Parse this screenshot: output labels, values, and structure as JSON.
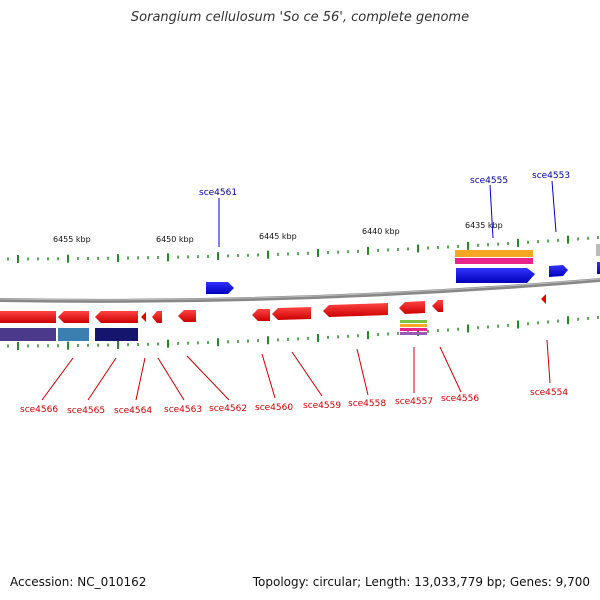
{
  "title": "Sorangium cellulosum 'So ce 56', complete genome",
  "footer": {
    "accession": "Accession: NC_010162",
    "summary": "Topology: circular; Length: 13,033,779 bp; Genes: 9,700"
  },
  "scale_labels": [
    "6455 kbp",
    "6450 kbp",
    "6445 kbp",
    "6440 kbp",
    "6435 kbp"
  ],
  "gene_labels_top": [
    "sce4561",
    "sce4555",
    "sce4553"
  ],
  "gene_labels_bottom": [
    "sce4566",
    "sce4565",
    "sce4564",
    "sce4563",
    "sce4562",
    "sce4560",
    "sce4559",
    "sce4558",
    "sce4557",
    "sce4556",
    "sce4554"
  ],
  "colors": {
    "forward_gene": "#0000ee",
    "reverse_gene": "#ee0000",
    "backbone": "#888888",
    "tick": "#228b22",
    "top_label": "#000099",
    "bottom_label": "#cc0000"
  }
}
